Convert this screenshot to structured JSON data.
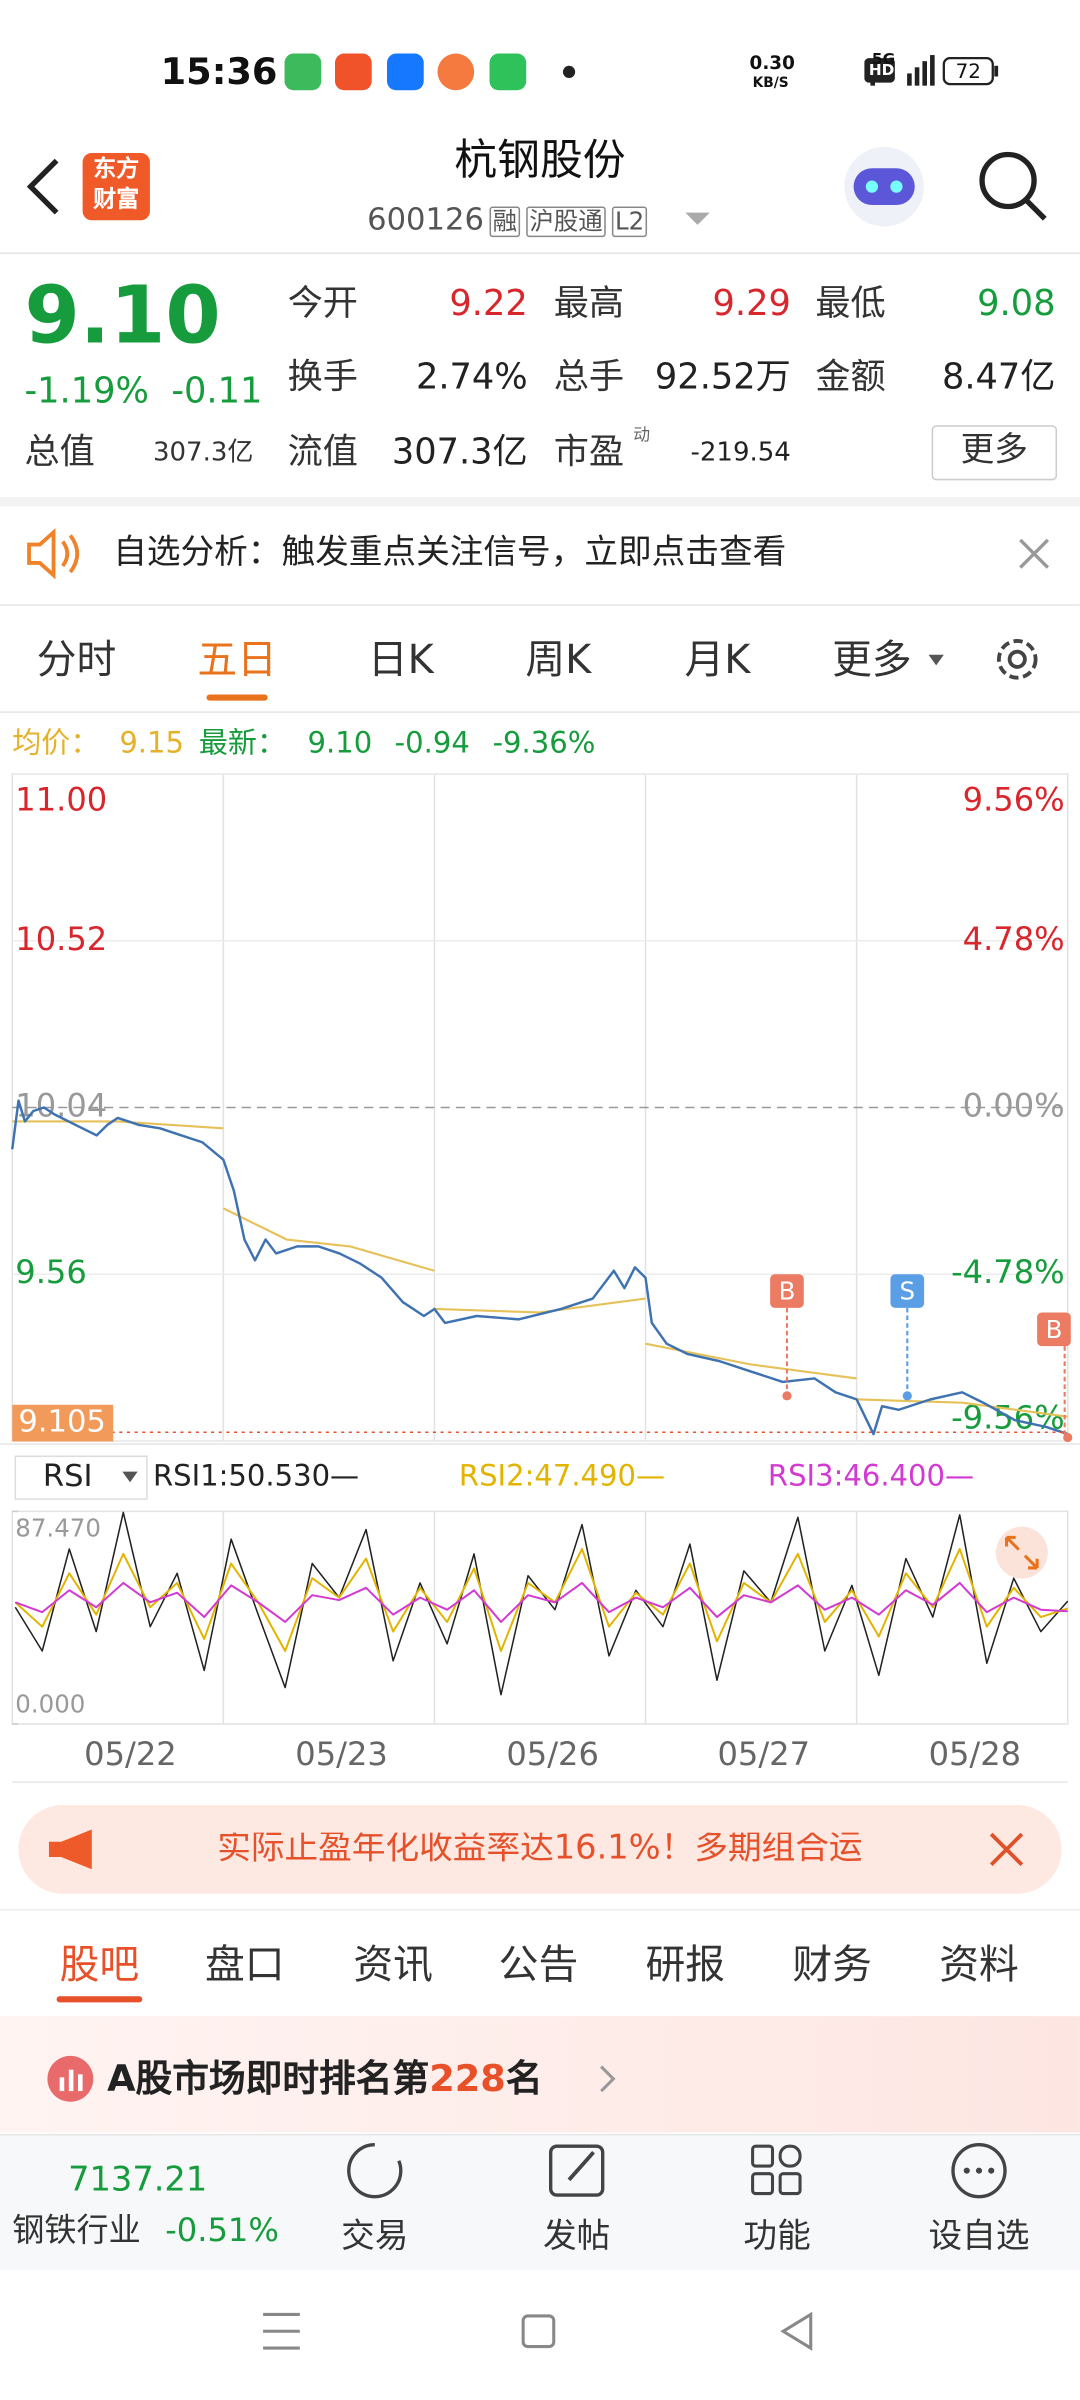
{
  "status_bar": {
    "time": "15:36",
    "net_speed": "0.30",
    "net_unit": "KB/S",
    "hd": "HD",
    "signal": "5G",
    "battery": "72"
  },
  "header": {
    "logo": [
      "东方",
      "财富"
    ],
    "title": "杭钢股份",
    "code": "600126",
    "badges": [
      "融",
      "沪股通",
      "L2"
    ]
  },
  "quote": {
    "price": "9.10",
    "change_pct": "-1.19%",
    "change": "-0.11",
    "total_value_label": "总值",
    "total_value": "307.3亿",
    "stats": [
      {
        "label": "今开",
        "value": "9.22"
      },
      {
        "label": "最高",
        "value": "9.29"
      },
      {
        "label": "最低",
        "value": "9.08"
      },
      {
        "label": "换手",
        "value": "2.74%"
      },
      {
        "label": "总手",
        "value": "92.52万"
      },
      {
        "label": "金额",
        "value": "8.47亿"
      },
      {
        "label": "流值",
        "value": "307.3亿"
      },
      {
        "label": "市盈",
        "sup": "动",
        "value": "-219.54"
      }
    ],
    "more": "更多"
  },
  "notice": {
    "text": "自选分析：触发重点关注信号，立即点击查看"
  },
  "tabs": {
    "items": [
      "分时",
      "五日",
      "日K",
      "周K",
      "月K",
      "更多"
    ],
    "active": 1
  },
  "summary": {
    "avg_label": "均价：",
    "avg": "9.15",
    "latest_label": "最新：",
    "latest": "9.10",
    "change": "-0.94",
    "change_pct": "-9.36%"
  },
  "chart_data": [
    {
      "type": "line",
      "xlim": [
        0,
        5
      ],
      "ylim": [
        9.08,
        11.0
      ],
      "yticks": [
        {
          "value": 11.0,
          "label": "11.00"
        },
        10.52,
        10.04,
        9.56
      ],
      "y2lim": [
        -9.56,
        9.56
      ],
      "y2ticks": [
        {
          "value": 9.56,
          "label": "9.56%"
        },
        {
          "value": 4.78,
          "label": "4.78%"
        },
        {
          "value": 0,
          "label": "0.00%"
        },
        {
          "value": -4.78,
          "label": "-4.78%"
        },
        {
          "value": -9.56,
          "label": "-9.56%"
        }
      ],
      "categories": [
        "05/22",
        "05/23",
        "05/26",
        "05/27",
        "05/28"
      ],
      "current_price": 9.105,
      "series": [
        {
          "name": "最新",
          "color": "#3f72b0",
          "x": [
            0,
            0.03,
            0.06,
            0.1,
            0.15,
            0.2,
            0.3,
            0.4,
            0.45,
            0.5,
            0.6,
            0.7,
            0.8,
            0.9,
            1.0,
            1.05,
            1.1,
            1.15,
            1.2,
            1.25,
            1.35,
            1.45,
            1.55,
            1.65,
            1.75,
            1.85,
            1.95,
            2.0,
            2.05,
            2.2,
            2.4,
            2.6,
            2.75,
            2.85,
            2.9,
            2.95,
            3.0,
            3.03,
            3.1,
            3.2,
            3.35,
            3.5,
            3.65,
            3.8,
            3.9,
            4.0,
            4.08,
            4.12,
            4.2,
            4.35,
            4.5,
            4.6,
            4.75,
            4.9,
            5.0
          ],
          "values": [
            9.92,
            10.06,
            10.0,
            10.03,
            10.04,
            10.02,
            9.99,
            9.96,
            9.99,
            10.01,
            9.99,
            9.98,
            9.96,
            9.94,
            9.89,
            9.8,
            9.66,
            9.6,
            9.66,
            9.62,
            9.64,
            9.64,
            9.62,
            9.59,
            9.55,
            9.48,
            9.44,
            9.46,
            9.42,
            9.44,
            9.43,
            9.46,
            9.49,
            9.57,
            9.52,
            9.58,
            9.55,
            9.42,
            9.36,
            9.33,
            9.31,
            9.28,
            9.25,
            9.26,
            9.22,
            9.2,
            9.1,
            9.18,
            9.17,
            9.2,
            9.22,
            9.19,
            9.14,
            9.12,
            9.1
          ]
        },
        {
          "name": "均价",
          "color": "#e6c15a",
          "x": [
            0,
            0.5,
            1.0,
            null,
            1.0,
            1.3,
            1.6,
            2.0,
            null,
            2.0,
            2.5,
            3.0,
            null,
            3.0,
            3.5,
            4.0,
            null,
            4.0,
            4.5,
            5.0
          ],
          "values": [
            10.0,
            10.0,
            9.98,
            null,
            9.75,
            9.66,
            9.64,
            9.57,
            null,
            9.46,
            9.45,
            9.49,
            null,
            9.36,
            9.3,
            9.26,
            null,
            9.2,
            9.19,
            9.15
          ]
        }
      ],
      "markers": [
        {
          "label": "B",
          "x": 3.67,
          "value": 9.21,
          "color": "#ec7b63"
        },
        {
          "label": "S",
          "x": 4.24,
          "value": 9.21,
          "color": "#5a9fe6"
        },
        {
          "label": "B",
          "x": 5.0,
          "value": 9.09,
          "color": "#ec7b63"
        }
      ]
    },
    {
      "type": "line",
      "indicator": "RSI",
      "ylim": [
        0,
        87.47
      ],
      "yticks": [
        {
          "value": 87.47,
          "label": "87.470"
        },
        {
          "value": 0,
          "label": "0.000"
        }
      ],
      "series": [
        {
          "name": "RSI1:50.530—",
          "color": "#222222",
          "values": [
            48,
            30,
            72,
            38,
            87,
            40,
            62,
            22,
            76,
            45,
            15,
            66,
            52,
            80,
            26,
            58,
            33,
            70,
            12,
            61,
            47,
            82,
            28,
            55,
            40,
            74,
            18,
            63,
            50,
            85,
            30,
            57,
            20,
            68,
            44,
            86,
            25,
            60,
            38,
            50.53
          ]
        },
        {
          "name": "RSI2:47.490—",
          "color": "#e2b400",
          "values": [
            50,
            40,
            62,
            45,
            70,
            48,
            58,
            35,
            66,
            50,
            30,
            60,
            52,
            68,
            38,
            56,
            42,
            64,
            30,
            58,
            50,
            72,
            40,
            54,
            45,
            66,
            34,
            58,
            50,
            70,
            42,
            55,
            36,
            62,
            48,
            72,
            40,
            56,
            44,
            47.49
          ]
        },
        {
          "name": "RSI3:46.400—",
          "color": "#d23ad2",
          "values": [
            50,
            46,
            55,
            48,
            58,
            50,
            54,
            44,
            57,
            50,
            42,
            53,
            51,
            56,
            45,
            52,
            47,
            55,
            42,
            53,
            50,
            58,
            46,
            52,
            48,
            56,
            44,
            53,
            50,
            57,
            47,
            52,
            45,
            55,
            49,
            58,
            46,
            52,
            47,
            46.4
          ]
        }
      ]
    }
  ],
  "ad": {
    "text": "实际止盈年化收益率达16.1%！多期组合运"
  },
  "sub_tabs": {
    "items": [
      "股吧",
      "盘口",
      "资讯",
      "公告",
      "研报",
      "财务",
      "资料"
    ],
    "active": 0
  },
  "ranking": {
    "prefix": "A股市场即时排名第",
    "rank": "228",
    "suffix": "名"
  },
  "bottom_bar": {
    "index": "7137.21",
    "industry": "钢铁行业",
    "industry_change": "-0.51%",
    "actions": [
      "交易",
      "发帖",
      "功能",
      "设自选"
    ]
  }
}
